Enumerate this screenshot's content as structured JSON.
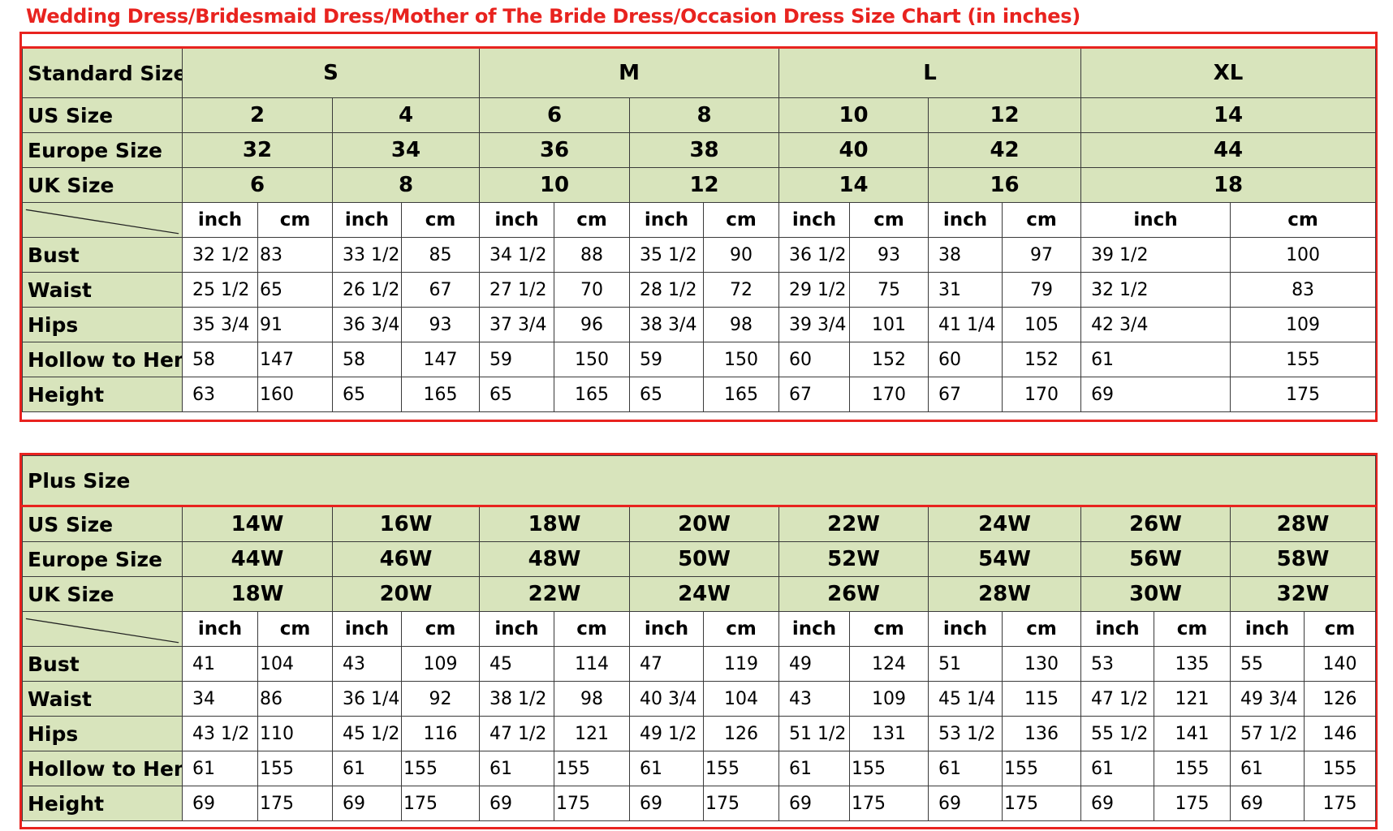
{
  "title": "Wedding Dress/Bridesmaid Dress/Mother of The Bride Dress/Occasion Dress Size Chart (in inches)",
  "standard": {
    "header_label": "Standard Size",
    "groups": [
      "S",
      "M",
      "L",
      "XL"
    ],
    "us_label": "US Size",
    "us": [
      "2",
      "4",
      "6",
      "8",
      "10",
      "12",
      "14"
    ],
    "eu_label": "Europe Size",
    "eu": [
      "32",
      "34",
      "36",
      "38",
      "40",
      "42",
      "44"
    ],
    "uk_label": "UK Size",
    "uk": [
      "6",
      "8",
      "10",
      "12",
      "14",
      "16",
      "18"
    ],
    "unit_inch": "inch",
    "unit_cm": "cm",
    "rows": [
      {
        "label": "Bust",
        "values": [
          "32 1/2",
          "83",
          "33 1/2",
          "85",
          "34 1/2",
          "88",
          "35 1/2",
          "90",
          "36 1/2",
          "93",
          "38",
          "97",
          "39 1/2",
          "100"
        ]
      },
      {
        "label": "Waist",
        "values": [
          "25 1/2",
          "65",
          "26 1/2",
          "67",
          "27 1/2",
          "70",
          "28 1/2",
          "72",
          "29 1/2",
          "75",
          "31",
          "79",
          "32 1/2",
          "83"
        ]
      },
      {
        "label": "Hips",
        "values": [
          "35 3/4",
          "91",
          "36 3/4",
          "93",
          "37 3/4",
          "96",
          "38 3/4",
          "98",
          "39 3/4",
          "101",
          "41 1/4",
          "105",
          "42 3/4",
          "109"
        ]
      },
      {
        "label": "Hollow to Hem",
        "values": [
          "58",
          "147",
          "58",
          "147",
          "59",
          "150",
          "59",
          "150",
          "60",
          "152",
          "60",
          "152",
          "61",
          "155"
        ]
      },
      {
        "label": "Height",
        "values": [
          "63",
          "160",
          "65",
          "165",
          "65",
          "165",
          "65",
          "165",
          "67",
          "170",
          "67",
          "170",
          "69",
          "175"
        ]
      }
    ]
  },
  "plus": {
    "header_label": "Plus Size",
    "us_label": "US Size",
    "us": [
      "14W",
      "16W",
      "18W",
      "20W",
      "22W",
      "24W",
      "26W",
      "28W"
    ],
    "eu_label": "Europe Size",
    "eu": [
      "44W",
      "46W",
      "48W",
      "50W",
      "52W",
      "54W",
      "56W",
      "58W"
    ],
    "uk_label": "UK Size",
    "uk": [
      "18W",
      "20W",
      "22W",
      "24W",
      "26W",
      "28W",
      "30W",
      "32W"
    ],
    "unit_inch": "inch",
    "unit_cm": "cm",
    "rows": [
      {
        "label": "Bust",
        "values": [
          "41",
          "104",
          "43",
          "109",
          "45",
          "114",
          "47",
          "119",
          "49",
          "124",
          "51",
          "130",
          "53",
          "135",
          "55",
          "140"
        ]
      },
      {
        "label": "Waist",
        "values": [
          "34",
          "86",
          "36 1/4",
          "92",
          "38 1/2",
          "98",
          "40 3/4",
          "104",
          "43",
          "109",
          "45 1/4",
          "115",
          "47 1/2",
          "121",
          "49 3/4",
          "126"
        ]
      },
      {
        "label": "Hips",
        "values": [
          "43 1/2",
          "110",
          "45 1/2",
          "116",
          "47 1/2",
          "121",
          "49 1/2",
          "126",
          "51 1/2",
          "131",
          "53 1/2",
          "136",
          "55 1/2",
          "141",
          "57 1/2",
          "146"
        ]
      },
      {
        "label": "Hollow to Hem",
        "values": [
          "61",
          "155",
          "61",
          "155",
          "61",
          "155",
          "61",
          "155",
          "61",
          "155",
          "61",
          "155",
          "61",
          "155",
          "61",
          "155"
        ]
      },
      {
        "label": "Height",
        "values": [
          "69",
          "175",
          "69",
          "175",
          "69",
          "175",
          "69",
          "175",
          "69",
          "175",
          "69",
          "175",
          "69",
          "175",
          "69",
          "175"
        ]
      }
    ]
  }
}
